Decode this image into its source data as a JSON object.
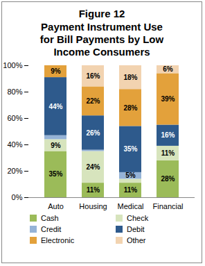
{
  "chart_data": {
    "type": "bar",
    "title": "Figure 12",
    "subtitle": "Payment Instrument Use for Bill Payments by Low Income Consumers",
    "categories": [
      "Auto",
      "Housing",
      "Medical",
      "Financial"
    ],
    "stacked": true,
    "data_labels": true,
    "legend": "bottom",
    "ylim": [
      0,
      100
    ],
    "yticks": [
      {
        "value": 0,
        "label": "0%"
      },
      {
        "value": 20,
        "label": "20%"
      },
      {
        "value": 40,
        "label": "40%"
      },
      {
        "value": 60,
        "label": "60%"
      },
      {
        "value": 80,
        "label": "80%"
      },
      {
        "value": 100,
        "label": "100%"
      }
    ],
    "series": [
      {
        "name": "Cash",
        "color": "#9BBB59",
        "values": [
          35,
          11,
          11,
          28
        ],
        "value_labels": [
          "35%",
          "11%",
          "11%",
          "28%"
        ]
      },
      {
        "name": "Check",
        "color": "#D7E4BD",
        "values": [
          9,
          24,
          3,
          11
        ],
        "value_labels": [
          "9%",
          "24%",
          null,
          "11%"
        ]
      },
      {
        "name": "Credit",
        "color": "#95B3D7",
        "values": [
          3,
          1,
          5,
          0
        ],
        "value_labels": [
          null,
          null,
          "5%",
          null
        ]
      },
      {
        "name": "Debit",
        "color": "#2E5A8C",
        "values": [
          44,
          26,
          35,
          16
        ],
        "value_labels": [
          "44%",
          "26%",
          "35%",
          "16%"
        ]
      },
      {
        "name": "Electronic",
        "color": "#E3A13B",
        "values": [
          9,
          22,
          28,
          39
        ],
        "value_labels": [
          "9%",
          "22%",
          "28%",
          "39%"
        ]
      },
      {
        "name": "Other",
        "color": "#F2D3B0",
        "values": [
          0,
          16,
          18,
          6
        ],
        "value_labels": [
          null,
          "16%",
          "18%",
          "6%"
        ]
      }
    ]
  }
}
